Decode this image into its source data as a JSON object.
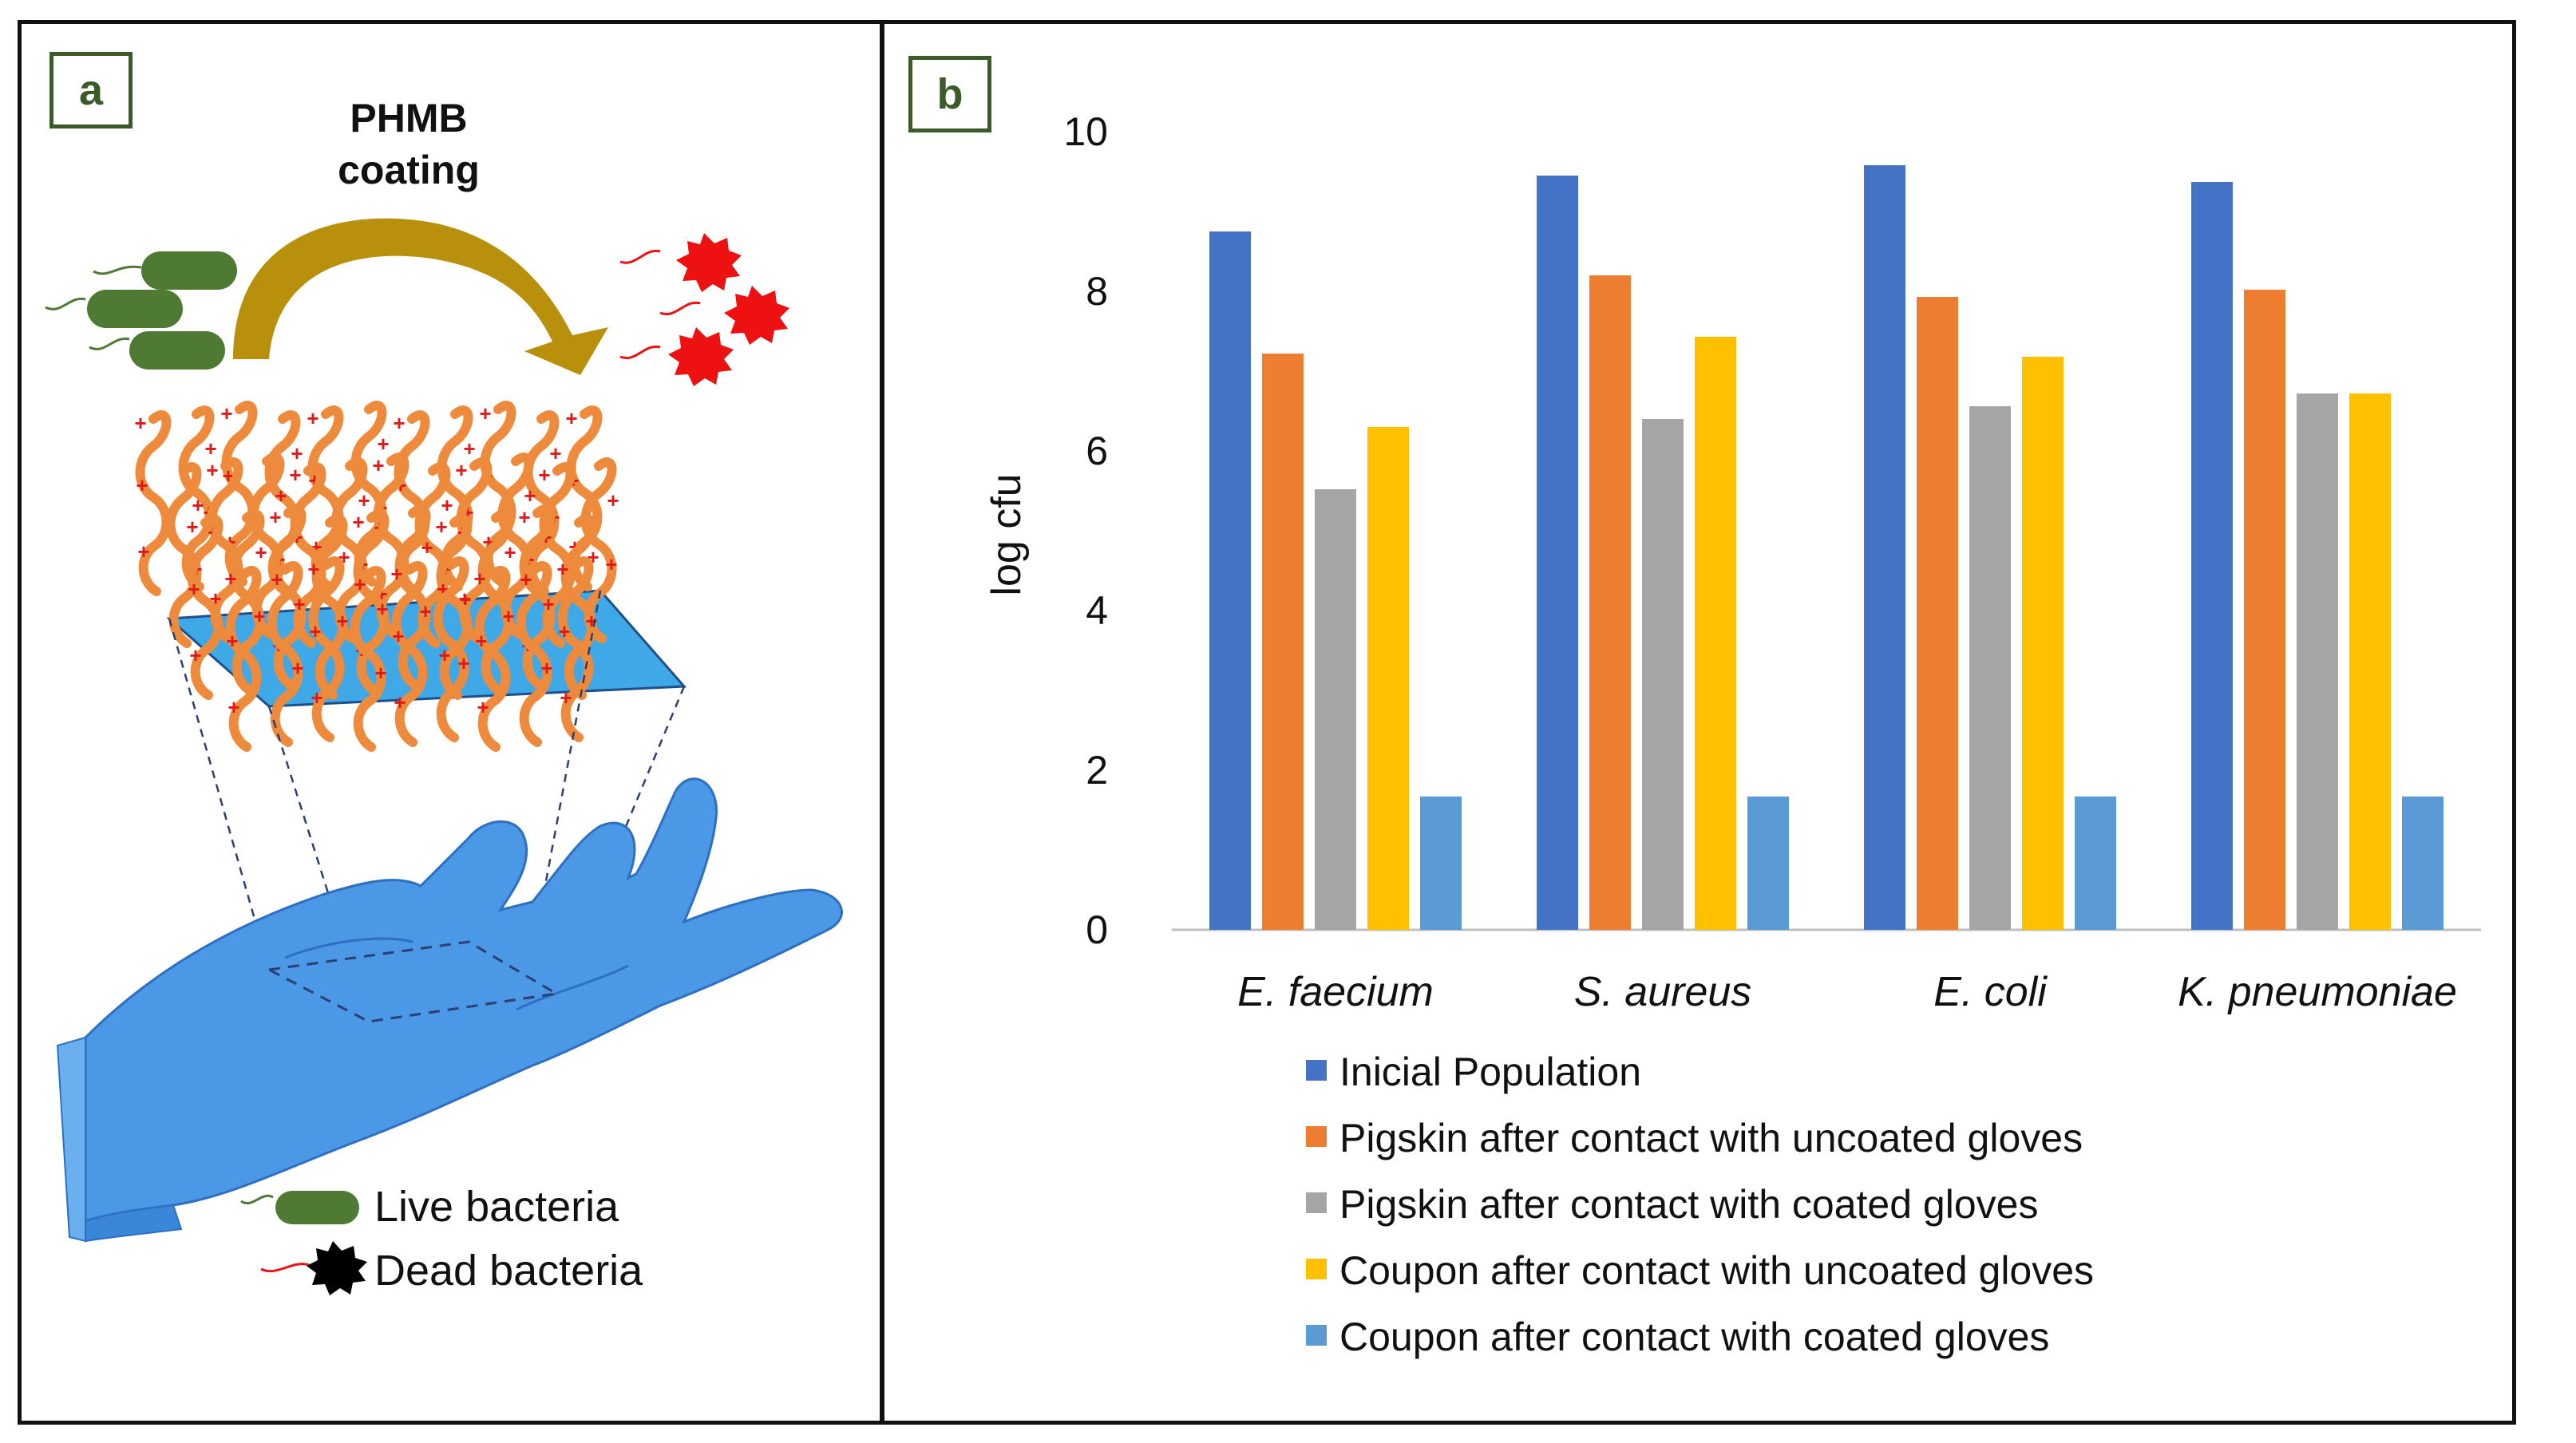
{
  "panel_a": {
    "label": "a",
    "coating_title_line1": "PHMB",
    "coating_title_line2": "coating",
    "charge_symbol": "+",
    "legend_live": "Live bacteria",
    "legend_dead": "Dead bacteria",
    "colors": {
      "bacteria_live": "#4e7a34",
      "bacteria_dead": "#ee1111",
      "polymer": "#ee8a3c",
      "surface": "#3fa9e8",
      "glove": "#4a98e6",
      "arrow": "#b8900c",
      "label_border": "#3a5b28"
    }
  },
  "panel_b": {
    "label": "b"
  },
  "chart_data": {
    "type": "bar",
    "ylabel": "log cfu",
    "xlabel": "",
    "ylim": [
      0,
      10
    ],
    "yticks": [
      0,
      2,
      4,
      6,
      8,
      10
    ],
    "grid": false,
    "legend_position": "bottom",
    "categories": [
      "E. faecium",
      "S. aureus",
      "E. coli",
      "K. pneumoniae"
    ],
    "series": [
      {
        "name": "Inicial Population",
        "color": "#4472c4",
        "values": [
          8.75,
          9.45,
          9.58,
          9.37
        ]
      },
      {
        "name": "Pigskin after contact with uncoated gloves",
        "color": "#ed7d31",
        "values": [
          7.22,
          8.2,
          7.93,
          8.02
        ]
      },
      {
        "name": "Pigskin after contact with coated gloves",
        "color": "#a5a5a5",
        "values": [
          5.52,
          6.4,
          6.56,
          6.72
        ]
      },
      {
        "name": "Coupon after contact with uncoated gloves",
        "color": "#ffc000",
        "values": [
          6.3,
          7.43,
          7.18,
          6.72
        ]
      },
      {
        "name": "Coupon after contact with coated gloves",
        "color": "#5b9bd5",
        "values": [
          1.67,
          1.67,
          1.67,
          1.67
        ]
      }
    ]
  }
}
